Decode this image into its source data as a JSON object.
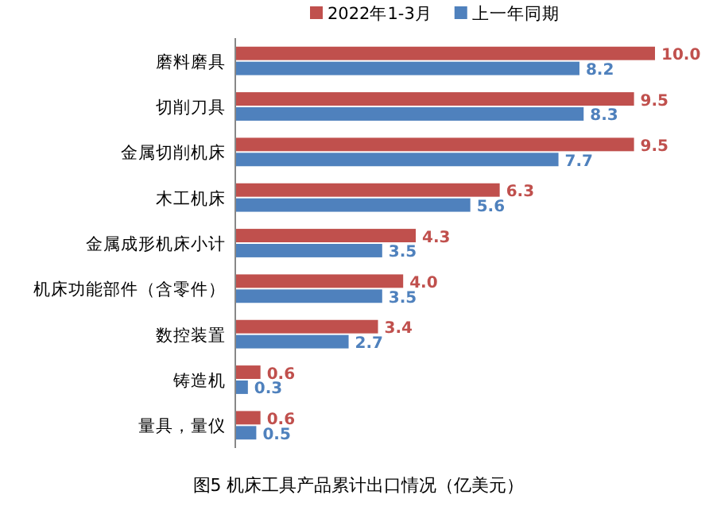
{
  "chart_data": {
    "type": "bar",
    "orientation": "horizontal",
    "title": "图5   机床工具产品累计出口情况（亿美元）",
    "categories": [
      "磨料磨具",
      "切削刀具",
      "金属切削机床",
      "木工机床",
      "金属成形机床小计",
      "机床功能部件（含零件）",
      "数控装置",
      "铸造机",
      "量具，量仪"
    ],
    "series": [
      {
        "name": "2022年1-3月",
        "color": "#c0504d",
        "values": [
          10.0,
          9.5,
          9.5,
          6.3,
          4.3,
          4.0,
          3.4,
          0.6,
          0.6
        ],
        "value_labels": [
          "10.0",
          "9.5",
          "9.5",
          "6.3",
          "4.3",
          "4.0",
          "3.4",
          "0.6",
          "0.6"
        ]
      },
      {
        "name": "上一年同期",
        "color": "#4f81bd",
        "values": [
          8.2,
          8.3,
          7.7,
          5.6,
          3.5,
          3.5,
          2.7,
          0.3,
          0.5
        ],
        "value_labels": [
          "8.2",
          "8.3",
          "7.7",
          "5.6",
          "3.5",
          "3.5",
          "2.7",
          "0.3",
          "0.5"
        ]
      }
    ],
    "legend": "top",
    "grid": false
  }
}
